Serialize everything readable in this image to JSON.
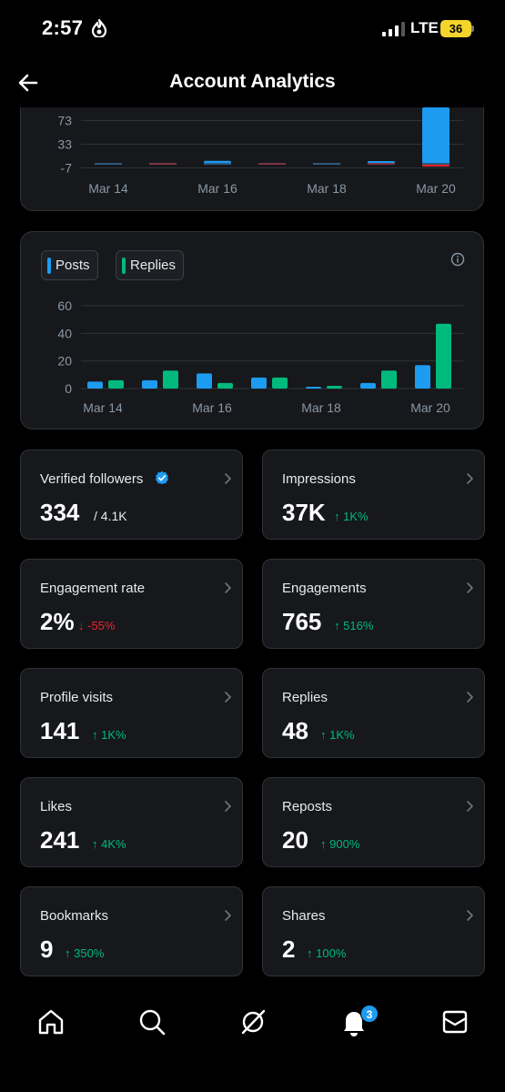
{
  "status_bar": {
    "time": "2:57",
    "network": "LTE",
    "battery": "36"
  },
  "header": {
    "title": "Account Analytics"
  },
  "chart_data": [
    {
      "type": "bar",
      "title": "",
      "y_ticks": [
        "73",
        "33",
        "-7"
      ],
      "ylim": [
        -7,
        113
      ],
      "x_tick_labels": [
        "Mar 14",
        "Mar 16",
        "Mar 18",
        "Mar 20"
      ],
      "categories": [
        "Mar 14",
        "Mar 15",
        "Mar 16",
        "Mar 17",
        "Mar 18",
        "Mar 19",
        "Mar 20"
      ],
      "series": [
        {
          "values": [
            0,
            0,
            5,
            0,
            0,
            1,
            113
          ],
          "color": "#1d9bf0"
        },
        {
          "values": [
            0,
            0,
            0,
            0,
            0,
            0,
            -3
          ],
          "color": "#f4212e"
        }
      ],
      "grid": true
    },
    {
      "type": "bar",
      "title": "",
      "y_ticks": [
        "60",
        "40",
        "20",
        "0"
      ],
      "ylim": [
        0,
        60
      ],
      "x_tick_labels": [
        "Mar 14",
        "Mar 16",
        "Mar 18",
        "Mar 20"
      ],
      "categories": [
        "Mar 14",
        "Mar 15",
        "Mar 16",
        "Mar 17",
        "Mar 18",
        "Mar 19",
        "Mar 20"
      ],
      "series": [
        {
          "name": "Posts",
          "values": [
            5,
            6,
            11,
            8,
            1,
            4,
            17
          ],
          "color": "#1d9bf0"
        },
        {
          "name": "Replies",
          "values": [
            6,
            13,
            4,
            8,
            2,
            13,
            47
          ],
          "color": "#00ba7c"
        }
      ],
      "legend": "top-left",
      "grid": true
    }
  ],
  "metrics": [
    {
      "label": "Verified followers",
      "value": "334",
      "total": "/ 4.1K",
      "verified": true
    },
    {
      "label": "Impressions",
      "value": "37K",
      "delta": "1K%",
      "direction": "up"
    },
    {
      "label": "Engagement rate",
      "value": "2%",
      "delta": "-55%",
      "direction": "down"
    },
    {
      "label": "Engagements",
      "value": "765",
      "delta": "516%",
      "direction": "up"
    },
    {
      "label": "Profile visits",
      "value": "141",
      "delta": "1K%",
      "direction": "up"
    },
    {
      "label": "Replies",
      "value": "48",
      "delta": "1K%",
      "direction": "up"
    },
    {
      "label": "Likes",
      "value": "241",
      "delta": "4K%",
      "direction": "up"
    },
    {
      "label": "Reposts",
      "value": "20",
      "delta": "900%",
      "direction": "up"
    },
    {
      "label": "Bookmarks",
      "value": "9",
      "delta": "350%",
      "direction": "up"
    },
    {
      "label": "Shares",
      "value": "2",
      "delta": "100%",
      "direction": "up"
    }
  ],
  "nav": {
    "items": [
      "home-icon",
      "search-icon",
      "grok-icon",
      "notifications-icon",
      "messages-icon"
    ],
    "notifications_badge": "3"
  },
  "colors": {
    "accent": "#1d9bf0",
    "positive": "#00ba7c",
    "negative": "#f4212e",
    "card_bg": "#16181c",
    "border": "#2f3336"
  }
}
